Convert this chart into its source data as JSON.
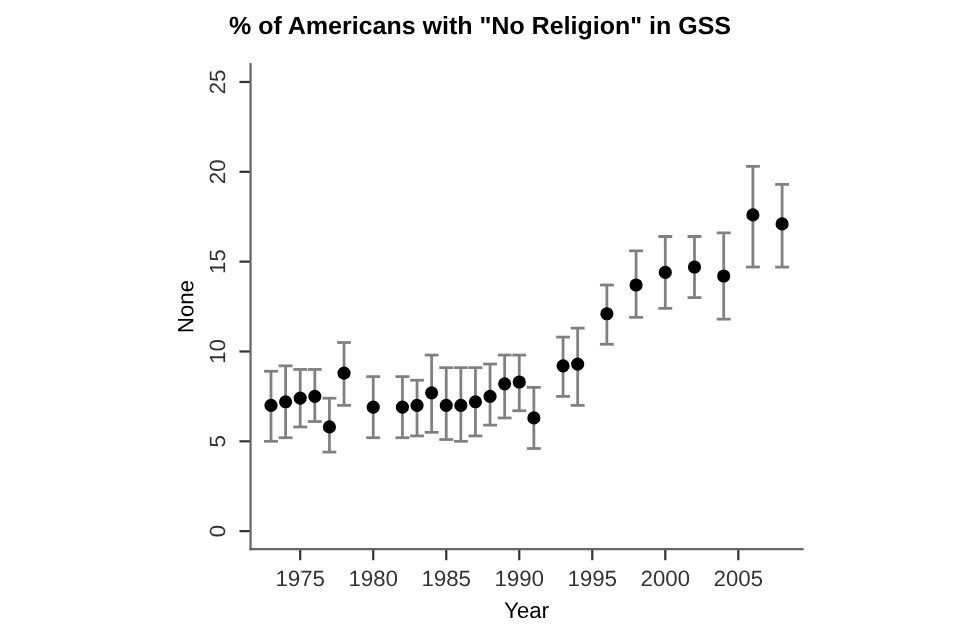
{
  "chart_data": {
    "type": "scatter",
    "title": "% of Americans with \"No Religion\" in GSS",
    "xlabel": "Year",
    "ylabel": "None",
    "x": [
      1973,
      1974,
      1975,
      1976,
      1977,
      1978,
      1980,
      1982,
      1983,
      1984,
      1985,
      1986,
      1987,
      1988,
      1989,
      1990,
      1991,
      1993,
      1994,
      1996,
      1998,
      2000,
      2002,
      2004,
      2006,
      2008
    ],
    "series": [
      {
        "color": "#000000",
        "values": [
          7.0,
          7.2,
          7.4,
          7.5,
          5.8,
          8.8,
          6.9,
          6.9,
          7.0,
          7.7,
          7.0,
          7.0,
          7.2,
          7.5,
          8.2,
          8.3,
          6.3,
          9.2,
          9.3,
          12.1,
          13.7,
          14.4,
          14.7,
          14.2,
          17.6,
          17.1
        ],
        "errors": [
          [
            5.0,
            8.9
          ],
          [
            5.2,
            9.2
          ],
          [
            5.8,
            9.0
          ],
          [
            6.1,
            9.0
          ],
          [
            4.4,
            7.4
          ],
          [
            7.0,
            10.5
          ],
          [
            5.2,
            8.6
          ],
          [
            5.2,
            8.6
          ],
          [
            5.3,
            8.4
          ],
          [
            5.5,
            9.8
          ],
          [
            5.1,
            9.1
          ],
          [
            5.0,
            9.1
          ],
          [
            5.3,
            9.1
          ],
          [
            5.9,
            9.3
          ],
          [
            6.3,
            9.8
          ],
          [
            6.7,
            9.8
          ],
          [
            4.6,
            8.0
          ],
          [
            7.5,
            10.8
          ],
          [
            7.0,
            11.3
          ],
          [
            10.4,
            13.7
          ],
          [
            11.9,
            15.6
          ],
          [
            12.4,
            16.4
          ],
          [
            13.0,
            16.4
          ],
          [
            11.8,
            16.6
          ],
          [
            14.7,
            20.3
          ],
          [
            14.7,
            19.3
          ]
        ]
      }
    ],
    "marker": "circle",
    "grid": false,
    "legend": false,
    "xlim": [
      1971.6,
      2009.4
    ],
    "xticks": [
      1975,
      1980,
      1985,
      1990,
      1995,
      2000,
      2005
    ],
    "ylim": [
      -1,
      26
    ],
    "yticks": [
      0,
      5,
      10,
      15,
      20,
      25
    ]
  }
}
